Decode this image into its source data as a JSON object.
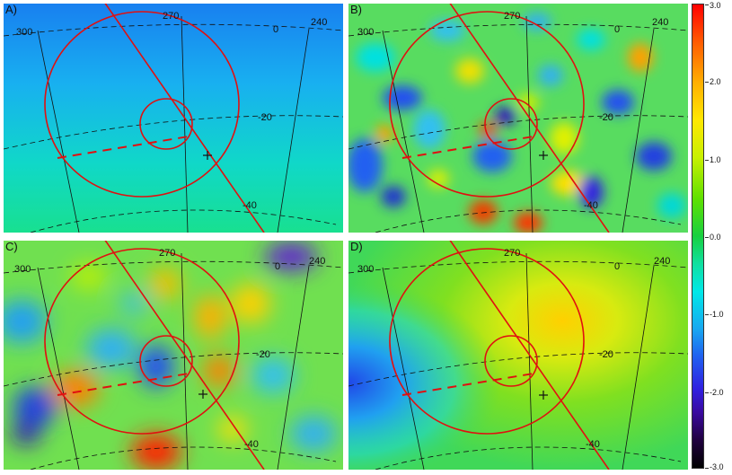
{
  "panels": [
    {
      "label": "A)",
      "field": "smooth_gradient"
    },
    {
      "label": "B)",
      "field": "fine_noise"
    },
    {
      "label": "C)",
      "field": "medium_noise"
    },
    {
      "label": "D)",
      "field": "large_scale"
    }
  ],
  "grid_labels": {
    "lon_300": "300",
    "lon_270": "270",
    "lon_240": "240",
    "lat_0": "0",
    "lat_m20": "-20",
    "lat_m40": "-40"
  },
  "colorbar": {
    "ticks": [
      "3.0",
      "2.0",
      "1.0",
      "0.0",
      "-1.0",
      "-2.0",
      "-3.0"
    ],
    "colors": [
      "#ff0000",
      "#ffe800",
      "#18d040",
      "#00e8e8",
      "#2060f0",
      "#3a0aa0",
      "#000000"
    ]
  },
  "overlay_color": "#e01010"
}
